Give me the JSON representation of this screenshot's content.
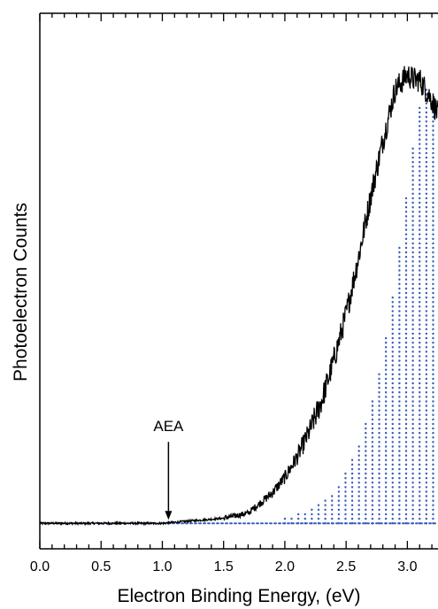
{
  "chart_data": {
    "type": "line",
    "title": "",
    "xlabel": "Electron Binding Energy, (eV)",
    "ylabel": "Photoelectron Counts",
    "xlim": [
      0.0,
      3.25
    ],
    "ylim": [
      -0.05,
      1.0
    ],
    "x_ticks": [
      "0.0",
      "0.5",
      "1.0",
      "1.5",
      "2.0",
      "2.5",
      "3.0"
    ],
    "grid": false,
    "legend": "none",
    "y_tick_labels": false,
    "colors": {
      "experiment": "#000000",
      "simulation": "#3a5db8"
    },
    "series": [
      {
        "style": "solid",
        "x": [
          0.0,
          1.0,
          1.5,
          1.7,
          1.8,
          1.9,
          2.0,
          2.1,
          2.2,
          2.3,
          2.4,
          2.5,
          2.6,
          2.7,
          2.8,
          2.9,
          3.0,
          3.05,
          3.1,
          3.15,
          3.2,
          3.25
        ],
        "y": [
          0.0,
          0.0,
          0.01,
          0.02,
          0.04,
          0.06,
          0.09,
          0.13,
          0.18,
          0.24,
          0.32,
          0.41,
          0.52,
          0.64,
          0.75,
          0.85,
          0.88,
          0.87,
          0.87,
          0.85,
          0.83,
          0.8
        ]
      },
      {
        "style": "dotted",
        "stick_spacing": 0.055,
        "x": [
          0.0,
          1.0,
          1.5,
          2.0,
          2.2,
          2.4,
          2.5,
          2.6,
          2.7,
          2.8,
          2.9,
          3.0,
          3.05,
          3.1,
          3.15,
          3.2,
          3.25
        ],
        "y": [
          0.0,
          0.0,
          0.005,
          0.01,
          0.03,
          0.06,
          0.1,
          0.15,
          0.23,
          0.33,
          0.48,
          0.66,
          0.75,
          0.82,
          0.86,
          0.83,
          0.78
        ]
      }
    ],
    "annotations": [
      {
        "text": "AEA",
        "x": 1.05,
        "y": 0.0,
        "arrow": true
      }
    ]
  }
}
